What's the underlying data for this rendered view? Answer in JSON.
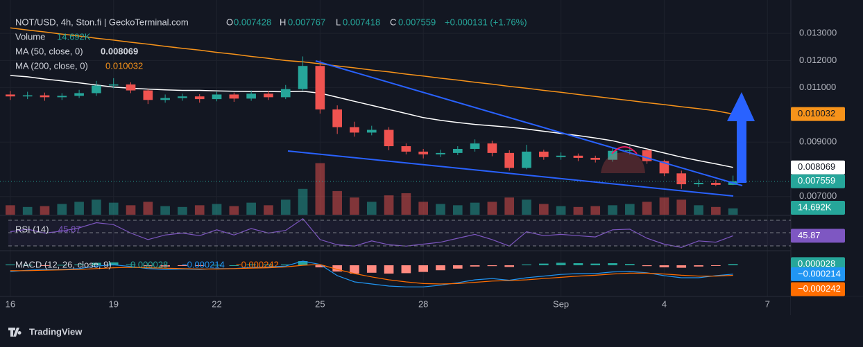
{
  "header": {
    "title": "NOT/USD, 4h, Ston.fi | GeckoTerminal.com",
    "ohlc_labels": [
      "O",
      "H",
      "L",
      "C"
    ],
    "change": "+0.000131 (+1.76%)"
  },
  "chart_data": {
    "type": "candlestick",
    "x": [
      0,
      0.5,
      1,
      1.5,
      2,
      2.5,
      3,
      3.5,
      4,
      4.5,
      5,
      5.5,
      6,
      6.5,
      7,
      7.5,
      8,
      8.5,
      9,
      9.5,
      10,
      10.5,
      11,
      11.5,
      12,
      12.5,
      13,
      13.5,
      14,
      14.5,
      15,
      15.5,
      16,
      16.5,
      17,
      17.5,
      18,
      18.5,
      19,
      19.5,
      20,
      20.5,
      21
    ],
    "open": [
      0.01075,
      0.01068,
      0.01072,
      0.01065,
      0.0107,
      0.0108,
      0.01108,
      0.01112,
      0.0109,
      0.01055,
      0.01062,
      0.01068,
      0.01058,
      0.01075,
      0.0106,
      0.01078,
      0.01065,
      0.01095,
      0.0118,
      0.0102,
      0.00955,
      0.00935,
      0.00945,
      0.00885,
      0.00865,
      0.00855,
      0.0086,
      0.00875,
      0.00895,
      0.0086,
      0.00805,
      0.00865,
      0.00845,
      0.0085,
      0.00842,
      0.00835,
      0.00868,
      0.0087,
      0.0083,
      0.00785,
      0.00745,
      0.0075,
      0.007428
    ],
    "high": [
      0.01088,
      0.01085,
      0.01082,
      0.0108,
      0.01092,
      0.01125,
      0.01135,
      0.0112,
      0.01095,
      0.01075,
      0.01078,
      0.01076,
      0.01085,
      0.01082,
      0.0109,
      0.01088,
      0.0111,
      0.01215,
      0.012,
      0.01035,
      0.00975,
      0.0096,
      0.00955,
      0.00895,
      0.00875,
      0.00872,
      0.00885,
      0.0091,
      0.00905,
      0.0087,
      0.0089,
      0.00872,
      0.00862,
      0.00858,
      0.0085,
      0.00878,
      0.00885,
      0.00875,
      0.00835,
      0.00795,
      0.00762,
      0.0076,
      0.007767
    ],
    "low": [
      0.01055,
      0.01058,
      0.01052,
      0.01055,
      0.01062,
      0.0107,
      0.01098,
      0.0108,
      0.0104,
      0.01045,
      0.01052,
      0.01045,
      0.0105,
      0.01048,
      0.01052,
      0.01055,
      0.01058,
      0.0109,
      0.01005,
      0.0093,
      0.0092,
      0.00925,
      0.0087,
      0.00855,
      0.0084,
      0.00845,
      0.00852,
      0.00865,
      0.00848,
      0.00795,
      0.008,
      0.00835,
      0.00835,
      0.0083,
      0.00825,
      0.00828,
      0.00855,
      0.0082,
      0.00775,
      0.00728,
      0.00735,
      0.00738,
      0.007418
    ],
    "close": [
      0.01068,
      0.01072,
      0.01065,
      0.0107,
      0.0108,
      0.01108,
      0.01112,
      0.0109,
      0.01055,
      0.01062,
      0.01068,
      0.01058,
      0.01075,
      0.0106,
      0.01078,
      0.01065,
      0.01095,
      0.0118,
      0.0102,
      0.00955,
      0.00935,
      0.00945,
      0.00885,
      0.00865,
      0.00855,
      0.0086,
      0.00875,
      0.00895,
      0.0086,
      0.00805,
      0.00865,
      0.00845,
      0.0085,
      0.00842,
      0.00835,
      0.00868,
      0.0087,
      0.0083,
      0.00785,
      0.00745,
      0.0075,
      0.007428,
      0.007559
    ],
    "up_color": "#26a69a",
    "down_color": "#ef5350",
    "xlim": [
      -0.3,
      22.68
    ],
    "xticks": [
      {
        "value": 0,
        "label": "16"
      },
      {
        "value": 3,
        "label": "19"
      },
      {
        "value": 6,
        "label": "22"
      },
      {
        "value": 9,
        "label": "25"
      },
      {
        "value": 12,
        "label": "28"
      },
      {
        "value": 16,
        "label": "Sep"
      },
      {
        "value": 19,
        "label": "4"
      },
      {
        "value": 22,
        "label": "7"
      }
    ],
    "ylim": [
      0.00633,
      0.01397
    ],
    "yticks": [
      {
        "value": 0.007,
        "label": "0.007000"
      },
      {
        "value": 0.009,
        "label": "0.009000"
      },
      {
        "value": 0.011,
        "label": "0.011000"
      },
      {
        "value": 0.012,
        "label": "0.012000"
      },
      {
        "value": 0.013,
        "label": "0.013000"
      }
    ],
    "series": [
      {
        "name": "MA (50, close, 0)",
        "color": "#ffffff",
        "values": [
          0.01145,
          0.0114,
          0.01132,
          0.01125,
          0.01118,
          0.0111,
          0.01102,
          0.01098,
          0.01095,
          0.01092,
          0.0109,
          0.0109,
          0.01088,
          0.01087,
          0.01086,
          0.01086,
          0.01085,
          0.01087,
          0.0108,
          0.01065,
          0.0105,
          0.01035,
          0.0102,
          0.01005,
          0.0099,
          0.0098,
          0.00972,
          0.00965,
          0.0096,
          0.00955,
          0.00948,
          0.0094,
          0.00932,
          0.00924,
          0.00915,
          0.00905,
          0.0089,
          0.00875,
          0.0086,
          0.00845,
          0.00832,
          0.0082,
          0.008069
        ]
      },
      {
        "name": "MA (200, close, 0)",
        "color": "#f7931a",
        "values": [
          0.0132,
          0.01312,
          0.01305,
          0.01297,
          0.0129,
          0.01282,
          0.01275,
          0.01267,
          0.0126,
          0.01252,
          0.01245,
          0.01238,
          0.0123,
          0.01223,
          0.01215,
          0.01208,
          0.012,
          0.01195,
          0.01188,
          0.0118,
          0.01173,
          0.01165,
          0.01158,
          0.0115,
          0.01143,
          0.01135,
          0.01128,
          0.0112,
          0.01113,
          0.01105,
          0.01098,
          0.0109,
          0.01083,
          0.01075,
          0.01068,
          0.0106,
          0.01053,
          0.01045,
          0.01038,
          0.0103,
          0.01023,
          0.01015,
          0.010032
        ]
      }
    ],
    "volume": {
      "name": "Volume",
      "ylim": [
        0,
        145000
      ],
      "values": [
        22000,
        18000,
        20000,
        25000,
        30000,
        35000,
        28000,
        22000,
        30000,
        20000,
        18000,
        22000,
        25000,
        20000,
        28000,
        22000,
        35000,
        60000,
        120000,
        55000,
        40000,
        30000,
        45000,
        50000,
        30000,
        25000,
        22000,
        28000,
        30000,
        40000,
        35000,
        25000,
        20000,
        18000,
        20000,
        22000,
        25000,
        30000,
        40000,
        35000,
        22000,
        18000,
        14692
      ],
      "value_labels": [
        null,
        null,
        null,
        null,
        null,
        null,
        null,
        null,
        null,
        null,
        null,
        null,
        null,
        null,
        null,
        null,
        null,
        null,
        null,
        null,
        null,
        null,
        null,
        null,
        null,
        null,
        null,
        null,
        null,
        null,
        null,
        null,
        null,
        null,
        null,
        null,
        null,
        null,
        null,
        null,
        null,
        null,
        "14.692K"
      ]
    },
    "rsi": {
      "name": "RSI (14)",
      "color": "#7e57c2",
      "ylim": [
        25,
        75
      ],
      "values": [
        52,
        56,
        50,
        53,
        58,
        66,
        63,
        50,
        40,
        47,
        50,
        46,
        55,
        47,
        57,
        50,
        54,
        72,
        40,
        32,
        30,
        38,
        32,
        30,
        33,
        36,
        42,
        48,
        40,
        30,
        52,
        46,
        48,
        46,
        44,
        55,
        56,
        42,
        33,
        28,
        38,
        36,
        45.87
      ]
    },
    "macd": {
      "name": "MACD (12, 26, close, 9)",
      "ylim": [
        -0.0007,
        0.0003
      ],
      "histogram": {
        "values": [
          2e-05,
          1e-05,
          -1e-05,
          1e-05,
          2e-05,
          6e-05,
          7e-05,
          2e-05,
          -2e-05,
          -3e-05,
          -1e-05,
          -1e-05,
          1e-05,
          0,
          2e-05,
          2e-05,
          2e-05,
          0.0001,
          -5e-05,
          -0.00015,
          -0.0002,
          -0.00018,
          -0.0002,
          -0.00019,
          -0.00016,
          -0.00012,
          -8e-05,
          -3e-05,
          -2e-05,
          -4e-05,
          2e-05,
          4e-05,
          6e-05,
          5e-05,
          4e-05,
          5e-05,
          3e-05,
          -2e-05,
          -5e-05,
          -6e-05,
          -3e-05,
          -1e-05,
          2.8e-05
        ]
      },
      "series": [
        {
          "color": "#2196f3",
          "values": [
            -0.00015,
            -0.00012,
            -0.0001,
            -0.0001,
            -8e-05,
            -2e-05,
            1e-05,
            -3e-05,
            -8e-05,
            -0.0001,
            -9e-05,
            -0.0001,
            -8e-05,
            -8e-05,
            -5e-05,
            -4e-05,
            -2e-05,
            0.0001,
            2e-05,
            -0.00025,
            -0.0004,
            -0.00045,
            -0.0005,
            -0.00052,
            -0.00052,
            -0.00048,
            -0.00042,
            -0.00035,
            -0.00032,
            -0.00036,
            -0.0003,
            -0.00026,
            -0.00022,
            -0.0002,
            -0.0002,
            -0.00016,
            -0.00015,
            -0.00018,
            -0.00025,
            -0.0003,
            -0.0003,
            -0.00025,
            -0.000214
          ],
          "value_labels": [
            null,
            null,
            null,
            null,
            null,
            null,
            null,
            null,
            null,
            null,
            null,
            null,
            null,
            null,
            null,
            null,
            null,
            null,
            null,
            null,
            null,
            null,
            null,
            null,
            null,
            null,
            null,
            null,
            null,
            null,
            null,
            null,
            null,
            null,
            null,
            null,
            null,
            null,
            null,
            null,
            null,
            null,
            "−0.000214"
          ]
        },
        {
          "color": "#ff6d00",
          "values": [
            -0.00013,
            -0.00013,
            -0.00012,
            -0.00011,
            -0.0001,
            -8e-05,
            -6e-05,
            -5e-05,
            -6e-05,
            -7e-05,
            -8e-05,
            -9e-05,
            -9e-05,
            -8e-05,
            -7e-05,
            -6e-05,
            -4e-05,
            0,
            2e-05,
            -0.0001,
            -0.0002,
            -0.00028,
            -0.00035,
            -0.0004,
            -0.00044,
            -0.00045,
            -0.00044,
            -0.00041,
            -0.00038,
            -0.00037,
            -0.00035,
            -0.00032,
            -0.00029,
            -0.00026,
            -0.00024,
            -0.00021,
            -0.00019,
            -0.00019,
            -0.00021,
            -0.00024,
            -0.00026,
            -0.00026,
            -0.000242
          ],
          "value_labels": [
            null,
            null,
            null,
            null,
            null,
            null,
            null,
            null,
            null,
            null,
            null,
            null,
            null,
            null,
            null,
            null,
            null,
            null,
            null,
            null,
            null,
            null,
            null,
            null,
            null,
            null,
            null,
            null,
            null,
            null,
            null,
            null,
            null,
            null,
            null,
            null,
            null,
            null,
            null,
            null,
            null,
            null,
            "−0.000242"
          ]
        }
      ]
    }
  },
  "branding": "TradingView"
}
